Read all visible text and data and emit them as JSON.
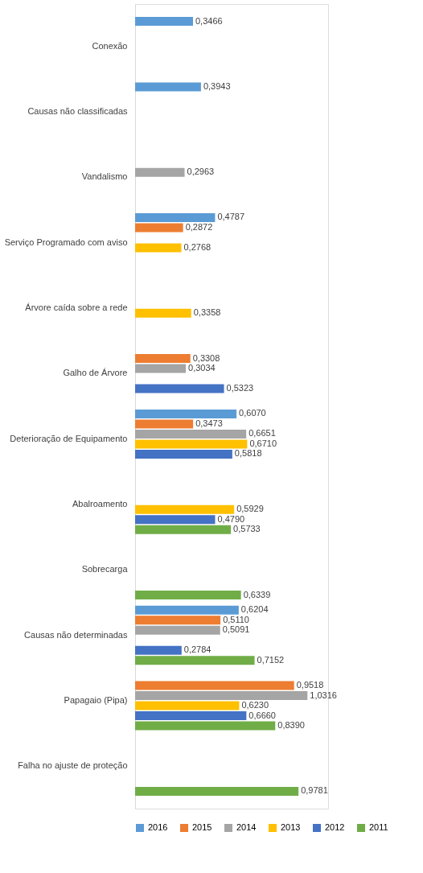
{
  "chart_data": {
    "type": "bar",
    "orientation": "horizontal",
    "legend": "bottom",
    "grid": false,
    "categories": [
      "Conexão",
      "Causas não classificadas",
      "Vandalismo",
      "Serviço Programado com aviso",
      "Árvore caída sobre a rede",
      "Galho de Árvore",
      "Deterioração de Equipamento",
      "Abalroamento",
      "Sobrecarga",
      "Causas não determinadas",
      "Papagaio (Pipa)",
      "Falha no ajuste de proteção"
    ],
    "series": [
      {
        "name": "2016",
        "color": "#5b9bd5",
        "values": [
          0.3466,
          0.3943,
          null,
          0.4787,
          null,
          null,
          0.607,
          null,
          null,
          0.6204,
          null,
          null
        ],
        "value_labels": [
          "0,3466",
          "0,3943",
          null,
          "0,4787",
          null,
          null,
          "0,6070",
          null,
          null,
          "0,6204",
          null,
          null
        ]
      },
      {
        "name": "2015",
        "color": "#ed7d31",
        "values": [
          null,
          null,
          null,
          0.2872,
          null,
          0.3308,
          0.3473,
          null,
          null,
          0.511,
          0.9518,
          null
        ],
        "value_labels": [
          null,
          null,
          null,
          "0,2872",
          null,
          "0,3308",
          "0,3473",
          null,
          null,
          "0,5110",
          "0,9518",
          null
        ]
      },
      {
        "name": "2014",
        "color": "#a5a5a5",
        "values": [
          null,
          null,
          0.2963,
          null,
          null,
          0.3034,
          0.6651,
          null,
          null,
          0.5091,
          1.0316,
          null
        ],
        "value_labels": [
          null,
          null,
          "0,2963",
          null,
          null,
          "0,3034",
          "0,6651",
          null,
          null,
          "0,5091",
          "1,0316",
          null
        ]
      },
      {
        "name": "2013",
        "color": "#ffc000",
        "values": [
          null,
          null,
          null,
          0.2768,
          0.3358,
          null,
          0.671,
          0.5929,
          null,
          null,
          0.623,
          null
        ],
        "value_labels": [
          null,
          null,
          null,
          "0,2768",
          "0,3358",
          null,
          "0,6710",
          "0,5929",
          null,
          null,
          "0,6230",
          null
        ]
      },
      {
        "name": "2012",
        "color": "#4472c4",
        "values": [
          null,
          null,
          null,
          null,
          null,
          0.5323,
          0.5818,
          0.479,
          null,
          0.2784,
          0.666,
          null
        ],
        "value_labels": [
          null,
          null,
          null,
          null,
          null,
          "0,5323",
          "0,5818",
          "0,4790",
          null,
          "0,2784",
          "0,6660",
          null
        ]
      },
      {
        "name": "2011",
        "color": "#70ad47",
        "values": [
          null,
          null,
          null,
          null,
          null,
          null,
          null,
          0.5733,
          0.6339,
          0.7152,
          0.839,
          0.9781
        ],
        "value_labels": [
          null,
          null,
          null,
          null,
          null,
          null,
          null,
          "0,5733",
          "0,6339",
          "0,7152",
          "0,8390",
          "0,9781"
        ]
      }
    ]
  }
}
